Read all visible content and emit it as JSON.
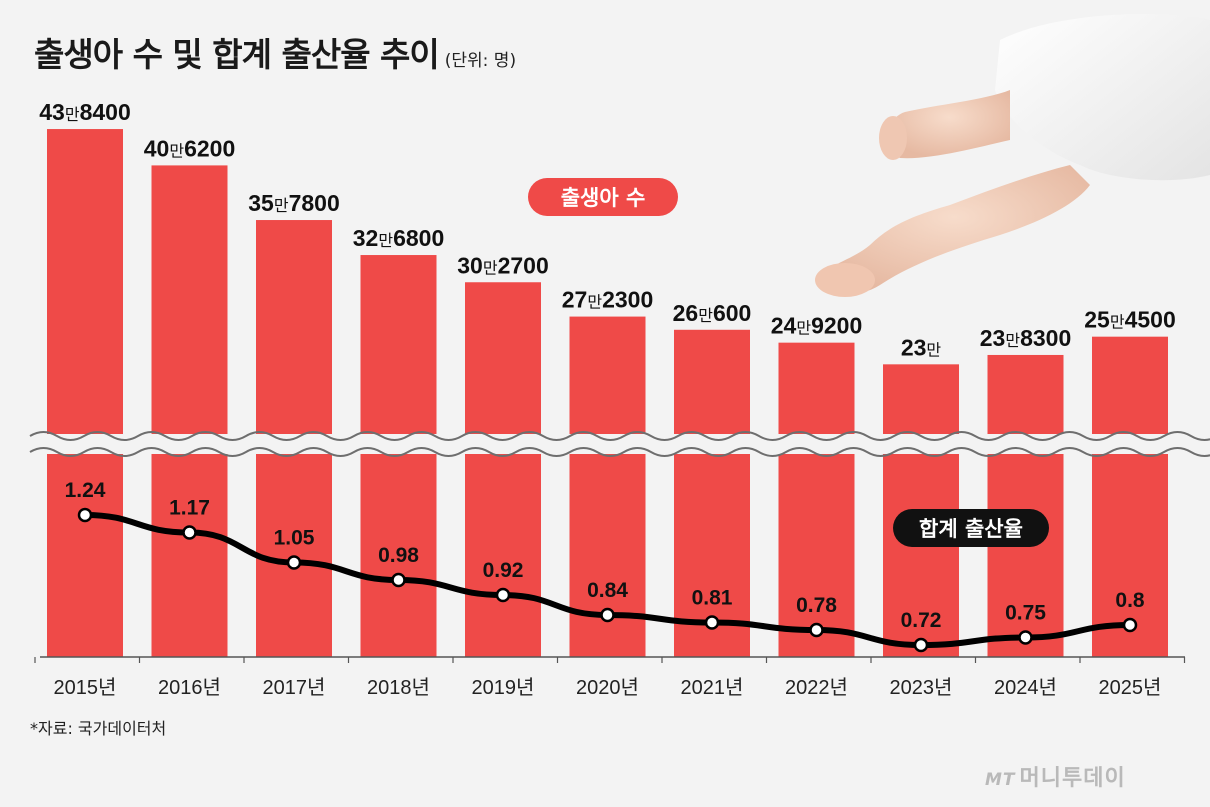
{
  "title": "출생아 수 및 합계 출산율 추이",
  "unit": "(단위: 명)",
  "source": "*자료: 국가데이터처",
  "watermark": {
    "mark": "MT",
    "text": "머니투데이"
  },
  "colors": {
    "bar": "#ef4a48",
    "line": "#000000",
    "background": "#f3f3f3",
    "pill_births": "#ef4a48",
    "pill_tfr": "#111111"
  },
  "chart_data": {
    "type": "bar",
    "title": "출생아 수 및 합계 출산율 추이",
    "ylabel": "(단위: 명)",
    "axis_break": true,
    "categories": [
      "2015년",
      "2016년",
      "2017년",
      "2018년",
      "2019년",
      "2020년",
      "2021년",
      "2022년",
      "2023년",
      "2024년",
      "2025년"
    ],
    "series": [
      {
        "name": "출생아 수",
        "type": "bar",
        "values": [
          438400,
          406200,
          357800,
          326800,
          302700,
          272300,
          260600,
          249200,
          230000,
          238300,
          254500
        ],
        "labels": [
          {
            "big": "43",
            "man": "만",
            "rest": "8400"
          },
          {
            "big": "40",
            "man": "만",
            "rest": "6200"
          },
          {
            "big": "35",
            "man": "만",
            "rest": "7800"
          },
          {
            "big": "32",
            "man": "만",
            "rest": "6800"
          },
          {
            "big": "30",
            "man": "만",
            "rest": "2700"
          },
          {
            "big": "27",
            "man": "만",
            "rest": "2300"
          },
          {
            "big": "26",
            "man": "만",
            "rest": "600"
          },
          {
            "big": "24",
            "man": "만",
            "rest": "9200"
          },
          {
            "big": "23",
            "man": "만",
            "rest": ""
          },
          {
            "big": "23",
            "man": "만",
            "rest": "8300"
          },
          {
            "big": "25",
            "man": "만",
            "rest": "4500"
          }
        ]
      },
      {
        "name": "합계 출산율",
        "type": "line",
        "values": [
          1.24,
          1.17,
          1.05,
          0.98,
          0.92,
          0.84,
          0.81,
          0.78,
          0.72,
          0.75,
          0.8
        ],
        "labels": [
          "1.24",
          "1.17",
          "1.05",
          "0.98",
          "0.92",
          "0.84",
          "0.81",
          "0.78",
          "0.72",
          "0.75",
          "0.8"
        ]
      }
    ],
    "legend": {
      "births": "출생아 수",
      "tfr": "합계 출산율"
    }
  }
}
